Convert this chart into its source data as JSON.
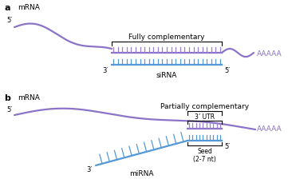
{
  "mrna_color": "#8B74C8",
  "sirna_color": "#5599D8",
  "mirna_color": "#5599D8",
  "duplex_mrna_color": "#9B7FD4",
  "text_color_purple": "#8B74C8",
  "background": "#ffffff",
  "panel_a_label": "a",
  "panel_b_label": "b",
  "mrna_label": "mRNA",
  "sirna_label": "siRNA",
  "mirna_label": "miRNA",
  "aaaaa_label": "AAAAA",
  "fully_comp_label": "Fully complementary",
  "partly_comp_label": "Partially complementary",
  "three_utr_label": "3’ UTR",
  "seed_label": "Seed\n(2-7 nt)",
  "five_prime": "5′",
  "three_prime": "3′"
}
